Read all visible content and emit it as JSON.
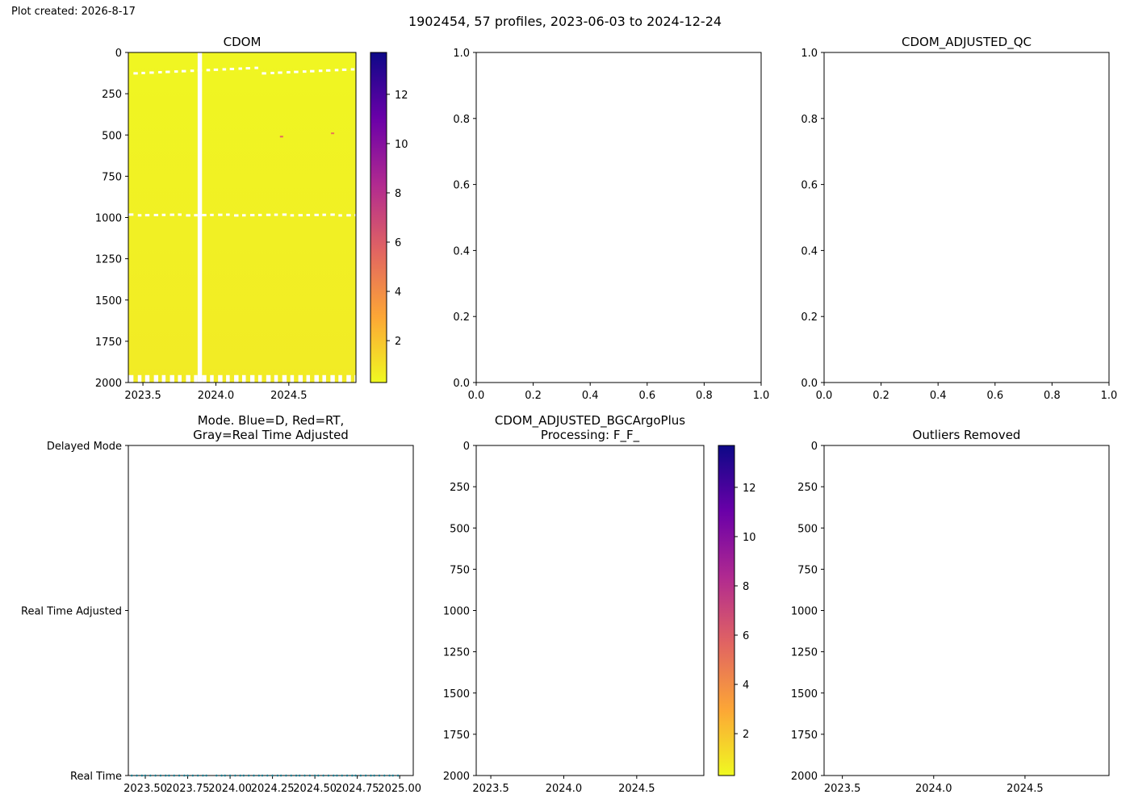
{
  "figure": {
    "created_label": "Plot created: 2026-8-17",
    "suptitle": "1902454, 57 profiles, 2023-06-03 to 2024-12-24"
  },
  "colormap": {
    "name": "plasma_r",
    "stops": [
      "#f0f921",
      "#fca636",
      "#e16462",
      "#b12a90",
      "#6a00a8",
      "#0d0887"
    ]
  },
  "chart_data": [
    {
      "id": "cdom",
      "type": "heatmap",
      "title": "CDOM",
      "xlim": [
        2023.4,
        2024.96
      ],
      "xticks": [
        2023.5,
        2024.0,
        2024.5
      ],
      "xtick_labels": [
        "2023.5",
        "2024.0",
        "2024.5"
      ],
      "ylim": [
        2000,
        0
      ],
      "yticks": [
        0,
        250,
        500,
        750,
        1000,
        1250,
        1500,
        1750,
        2000
      ],
      "colorbar": {
        "min": 0.3,
        "max": 13.7,
        "ticks": [
          2,
          4,
          6,
          8,
          10,
          12
        ]
      },
      "profile_times": [
        2023.42,
        2023.45,
        2023.48,
        2023.5,
        2023.53,
        2023.56,
        2023.59,
        2023.62,
        2023.64,
        2023.67,
        2023.7,
        2023.73,
        2023.75,
        2023.78,
        2023.81,
        2023.84,
        2023.86,
        2023.89,
        2023.92,
        2023.95,
        2023.97,
        2024.0,
        2024.03,
        2024.06,
        2024.08,
        2024.11,
        2024.14,
        2024.17,
        2024.19,
        2024.22,
        2024.25,
        2024.28,
        2024.3,
        2024.33,
        2024.36,
        2024.39,
        2024.41,
        2024.44,
        2024.47,
        2024.5,
        2024.52,
        2024.55,
        2024.58,
        2024.61,
        2024.63,
        2024.66,
        2024.69,
        2024.72,
        2024.74,
        2024.77,
        2024.8,
        2024.83,
        2024.85,
        2024.88,
        2024.91,
        2024.94,
        2024.96
      ],
      "surface_value": 0.4,
      "deep_value": 0.75,
      "gap": {
        "time_start": 2023.875,
        "time_end": 2023.9
      },
      "missing_bands": [
        {
          "depth_top": 85,
          "depth_bottom": 135
        },
        {
          "depth_top": 975,
          "depth_bottom": 995
        }
      ],
      "outlier_points": [
        {
          "time": 2024.45,
          "depth": 510,
          "value": 5.5
        },
        {
          "time": 2024.8,
          "depth": 490,
          "value": 5.0
        }
      ]
    },
    {
      "id": "cdom-adjusted-qc-empty",
      "type": "scatter",
      "title": "",
      "xlim": [
        0,
        1
      ],
      "ylim": [
        0,
        1
      ],
      "xticks": [
        0,
        0.2,
        0.4,
        0.6,
        0.8,
        1.0
      ],
      "xtick_labels": [
        "0.0",
        "0.2",
        "0.4",
        "0.6",
        "0.8",
        "1.0"
      ],
      "yticks": [
        0,
        0.2,
        0.4,
        0.6,
        0.8,
        1.0
      ],
      "ytick_labels": [
        "0.0",
        "0.2",
        "0.4",
        "0.6",
        "0.8",
        "1.0"
      ]
    },
    {
      "id": "cdom-adjusted-qc",
      "type": "scatter",
      "title": "CDOM_ADJUSTED_QC",
      "xlim": [
        0,
        1
      ],
      "ylim": [
        0,
        1
      ],
      "xticks": [
        0,
        0.2,
        0.4,
        0.6,
        0.8,
        1.0
      ],
      "xtick_labels": [
        "0.0",
        "0.2",
        "0.4",
        "0.6",
        "0.8",
        "1.0"
      ],
      "yticks": [
        0,
        0.2,
        0.4,
        0.6,
        0.8,
        1.0
      ],
      "ytick_labels": [
        "0.0",
        "0.2",
        "0.4",
        "0.6",
        "0.8",
        "1.0"
      ]
    },
    {
      "id": "mode",
      "type": "scatter",
      "title": "Mode. Blue=D, Red=RT,\nGray=Real Time Adjusted",
      "xlim": [
        2023.4,
        2025.08
      ],
      "xticks": [
        2023.5,
        2023.75,
        2024.0,
        2024.25,
        2024.5,
        2024.75,
        2025.0
      ],
      "xtick_labels": [
        "2023.50",
        "2023.75",
        "2024.00",
        "2024.25",
        "2024.50",
        "2024.75",
        "2025.00"
      ],
      "ylim": [
        0,
        2
      ],
      "ycategories": [
        "Real Time",
        "Real Time Adjusted",
        "Delayed Mode"
      ],
      "point_color": "#1f7a8c",
      "points": [
        {
          "x": 2023.42,
          "y": 0
        },
        {
          "x": 2023.45,
          "y": 0
        },
        {
          "x": 2023.48,
          "y": 0
        },
        {
          "x": 2023.5,
          "y": 0
        },
        {
          "x": 2023.53,
          "y": 0
        },
        {
          "x": 2023.56,
          "y": 0
        },
        {
          "x": 2023.59,
          "y": 0
        },
        {
          "x": 2023.62,
          "y": 0
        },
        {
          "x": 2023.64,
          "y": 0
        },
        {
          "x": 2023.67,
          "y": 0
        },
        {
          "x": 2023.7,
          "y": 0
        },
        {
          "x": 2023.73,
          "y": 0
        },
        {
          "x": 2023.75,
          "y": 0
        },
        {
          "x": 2023.78,
          "y": 0
        },
        {
          "x": 2023.81,
          "y": 0
        },
        {
          "x": 2023.84,
          "y": 0
        },
        {
          "x": 2023.86,
          "y": 0
        },
        {
          "x": 2023.92,
          "y": 0
        },
        {
          "x": 2023.95,
          "y": 0
        },
        {
          "x": 2023.97,
          "y": 0
        },
        {
          "x": 2024.0,
          "y": 0
        },
        {
          "x": 2024.03,
          "y": 0
        },
        {
          "x": 2024.06,
          "y": 0
        },
        {
          "x": 2024.08,
          "y": 0
        },
        {
          "x": 2024.11,
          "y": 0
        },
        {
          "x": 2024.14,
          "y": 0
        },
        {
          "x": 2024.17,
          "y": 0
        },
        {
          "x": 2024.19,
          "y": 0
        },
        {
          "x": 2024.22,
          "y": 0
        },
        {
          "x": 2024.25,
          "y": 0
        },
        {
          "x": 2024.28,
          "y": 0
        },
        {
          "x": 2024.3,
          "y": 0
        },
        {
          "x": 2024.33,
          "y": 0
        },
        {
          "x": 2024.36,
          "y": 0
        },
        {
          "x": 2024.39,
          "y": 0
        },
        {
          "x": 2024.41,
          "y": 0
        },
        {
          "x": 2024.44,
          "y": 0
        },
        {
          "x": 2024.47,
          "y": 0
        },
        {
          "x": 2024.5,
          "y": 0
        },
        {
          "x": 2024.52,
          "y": 0
        },
        {
          "x": 2024.55,
          "y": 0
        },
        {
          "x": 2024.58,
          "y": 0
        },
        {
          "x": 2024.61,
          "y": 0
        },
        {
          "x": 2024.63,
          "y": 0
        },
        {
          "x": 2024.66,
          "y": 0
        },
        {
          "x": 2024.69,
          "y": 0
        },
        {
          "x": 2024.72,
          "y": 0
        },
        {
          "x": 2024.74,
          "y": 0
        },
        {
          "x": 2024.77,
          "y": 0
        },
        {
          "x": 2024.8,
          "y": 0
        },
        {
          "x": 2024.83,
          "y": 0
        },
        {
          "x": 2024.85,
          "y": 0
        },
        {
          "x": 2024.88,
          "y": 0
        },
        {
          "x": 2024.91,
          "y": 0
        },
        {
          "x": 2024.94,
          "y": 0
        },
        {
          "x": 2024.96,
          "y": 0
        },
        {
          "x": 2024.99,
          "y": 0
        }
      ]
    },
    {
      "id": "cdom-bgc",
      "type": "heatmap",
      "title": "CDOM_ADJUSTED_BGCArgoPlus\nProcessing: F_F_",
      "xlim": [
        2023.4,
        2024.96
      ],
      "xticks": [
        2023.5,
        2024.0,
        2024.5
      ],
      "xtick_labels": [
        "2023.5",
        "2024.0",
        "2024.5"
      ],
      "ylim": [
        2000,
        0
      ],
      "yticks": [
        0,
        250,
        500,
        750,
        1000,
        1250,
        1500,
        1750,
        2000
      ],
      "colorbar": {
        "min": 0.3,
        "max": 13.7,
        "ticks": [
          2,
          4,
          6,
          8,
          10,
          12
        ]
      },
      "values": []
    },
    {
      "id": "outliers",
      "type": "heatmap",
      "title": "Outliers Removed",
      "xlim": [
        2023.4,
        2024.96
      ],
      "xticks": [
        2023.5,
        2024.0,
        2024.5
      ],
      "xtick_labels": [
        "2023.5",
        "2024.0",
        "2024.5"
      ],
      "ylim": [
        2000,
        0
      ],
      "yticks": [
        0,
        250,
        500,
        750,
        1000,
        1250,
        1500,
        1750,
        2000
      ],
      "values": []
    }
  ]
}
